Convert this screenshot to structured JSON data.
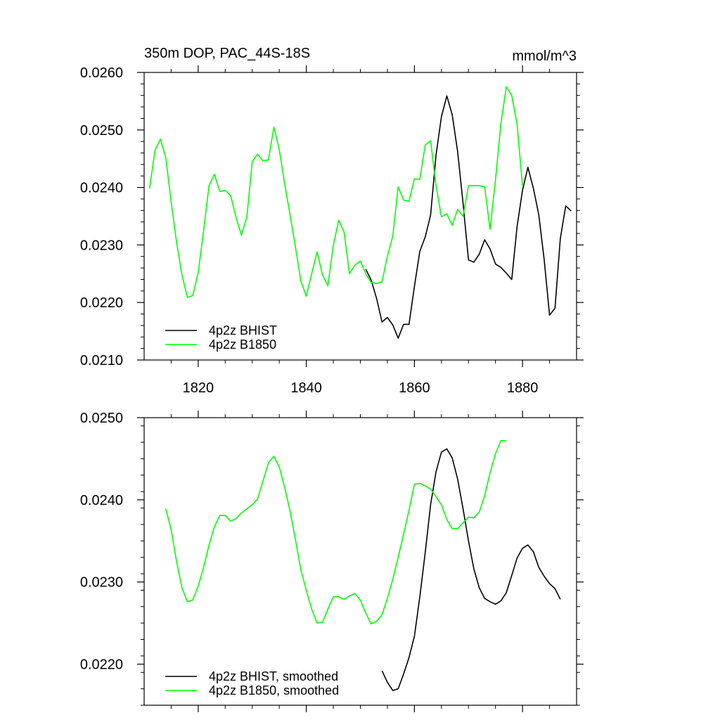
{
  "chart_data": [
    {
      "type": "line",
      "title": "350m DOP, PAC_44S-18S",
      "units": "mmol/m^3",
      "xlim": [
        1810,
        1890
      ],
      "ylim": [
        0.021,
        0.026
      ],
      "x_ticks": [
        1820,
        1840,
        1860,
        1880
      ],
      "x_tick_labels": [
        "1820",
        "1840",
        "1860",
        "1880"
      ],
      "y_ticks": [
        0.021,
        0.022,
        0.023,
        0.024,
        0.025,
        0.026
      ],
      "y_tick_labels": [
        "0.0210",
        "0.0220",
        "0.0230",
        "0.0240",
        "0.0250",
        "0.0260"
      ],
      "legend_position": "bottom-left",
      "series": [
        {
          "name": "4p2z BHIST",
          "color": "#000000",
          "x": [
            1851,
            1852,
            1853,
            1854,
            1855,
            1856,
            1857,
            1858,
            1859,
            1860,
            1861,
            1862,
            1863,
            1864,
            1865,
            1866,
            1867,
            1868,
            1869,
            1870,
            1871,
            1872,
            1873,
            1874,
            1875,
            1876,
            1877,
            1878,
            1879,
            1880,
            1881,
            1882,
            1883,
            1884,
            1885,
            1886,
            1887,
            1888,
            1889
          ],
          "y": [
            0.02258,
            0.02239,
            0.02207,
            0.02166,
            0.02174,
            0.02161,
            0.02138,
            0.02162,
            0.02162,
            0.02228,
            0.02289,
            0.02314,
            0.02352,
            0.02456,
            0.02523,
            0.02559,
            0.02526,
            0.02462,
            0.02372,
            0.02274,
            0.0227,
            0.02284,
            0.02309,
            0.02293,
            0.02267,
            0.02261,
            0.02251,
            0.0224,
            0.02332,
            0.02395,
            0.02435,
            0.02399,
            0.02353,
            0.02275,
            0.02178,
            0.0219,
            0.02311,
            0.02368,
            0.02359
          ]
        },
        {
          "name": "4p2z B1850",
          "color": "#00ff00",
          "x": [
            1811,
            1812,
            1813,
            1814,
            1815,
            1816,
            1817,
            1818,
            1819,
            1820,
            1821,
            1822,
            1823,
            1824,
            1825,
            1826,
            1827,
            1828,
            1829,
            1830,
            1831,
            1832,
            1833,
            1834,
            1835,
            1836,
            1837,
            1838,
            1839,
            1840,
            1841,
            1842,
            1843,
            1844,
            1845,
            1846,
            1847,
            1848,
            1849,
            1850,
            1851,
            1852,
            1853,
            1854,
            1855,
            1856,
            1857,
            1858,
            1859,
            1860,
            1861,
            1862,
            1863,
            1864,
            1865,
            1866,
            1867,
            1868,
            1869,
            1870,
            1871,
            1872,
            1873,
            1874,
            1875,
            1876,
            1877,
            1878,
            1879,
            1880
          ],
          "y": [
            0.02398,
            0.02464,
            0.02484,
            0.02452,
            0.02375,
            0.02305,
            0.02248,
            0.02209,
            0.02212,
            0.02252,
            0.02325,
            0.02403,
            0.02423,
            0.02393,
            0.02395,
            0.02386,
            0.02348,
            0.02317,
            0.02349,
            0.02445,
            0.02458,
            0.02446,
            0.02448,
            0.02505,
            0.02466,
            0.02406,
            0.02352,
            0.02296,
            0.02237,
            0.02211,
            0.0225,
            0.02288,
            0.02248,
            0.02229,
            0.023,
            0.02343,
            0.02322,
            0.0225,
            0.02265,
            0.02272,
            0.0225,
            0.02235,
            0.02233,
            0.02236,
            0.0228,
            0.02315,
            0.02401,
            0.02378,
            0.02376,
            0.02415,
            0.02414,
            0.02474,
            0.02481,
            0.02404,
            0.02349,
            0.02354,
            0.02334,
            0.02362,
            0.0235,
            0.02403,
            0.02403,
            0.02403,
            0.02401,
            0.02327,
            0.02413,
            0.02511,
            0.02575,
            0.0256,
            0.0251,
            0.02403
          ]
        }
      ]
    },
    {
      "type": "line",
      "title": "",
      "xlim": [
        1810,
        1890
      ],
      "ylim": [
        0.0215,
        0.025
      ],
      "x_ticks": [
        1820,
        1840,
        1860,
        1880
      ],
      "y_ticks": [
        0.022,
        0.023,
        0.024,
        0.025
      ],
      "y_tick_labels": [
        "0.0220",
        "0.0230",
        "0.0240",
        "0.0250"
      ],
      "legend_position": "bottom-left",
      "series": [
        {
          "name": "4p2z BHIST, smoothed",
          "color": "#000000",
          "x": [
            1854,
            1855,
            1856,
            1857,
            1858,
            1859,
            1860,
            1861,
            1862,
            1863,
            1864,
            1865,
            1866,
            1867,
            1868,
            1869,
            1870,
            1871,
            1872,
            1873,
            1874,
            1875,
            1876,
            1877,
            1878,
            1879,
            1880,
            1881,
            1882,
            1883,
            1884,
            1885,
            1886,
            1887
          ],
          "y": [
            0.02192,
            0.02178,
            0.02168,
            0.0217,
            0.02188,
            0.02208,
            0.02234,
            0.02282,
            0.02336,
            0.02394,
            0.02434,
            0.02458,
            0.02462,
            0.02451,
            0.02425,
            0.02389,
            0.0235,
            0.02316,
            0.02293,
            0.0228,
            0.02276,
            0.02273,
            0.02277,
            0.02287,
            0.02308,
            0.02329,
            0.02341,
            0.02345,
            0.02337,
            0.02318,
            0.02307,
            0.02298,
            0.02292,
            0.02279
          ]
        },
        {
          "name": "4p2z B1850, smoothed",
          "color": "#00ff00",
          "x": [
            1814,
            1815,
            1816,
            1817,
            1818,
            1819,
            1820,
            1821,
            1822,
            1823,
            1824,
            1825,
            1826,
            1827,
            1828,
            1829,
            1830,
            1831,
            1832,
            1833,
            1834,
            1835,
            1836,
            1837,
            1838,
            1839,
            1840,
            1841,
            1842,
            1843,
            1844,
            1845,
            1846,
            1847,
            1848,
            1849,
            1850,
            1851,
            1852,
            1853,
            1854,
            1855,
            1856,
            1857,
            1858,
            1859,
            1860,
            1861,
            1862,
            1863,
            1864,
            1865,
            1866,
            1867,
            1868,
            1869,
            1870,
            1871,
            1872,
            1873,
            1874,
            1875,
            1876,
            1877
          ],
          "y": [
            0.02389,
            0.02364,
            0.02325,
            0.02293,
            0.02276,
            0.02278,
            0.02295,
            0.02318,
            0.02345,
            0.02367,
            0.02381,
            0.02381,
            0.02374,
            0.02377,
            0.02384,
            0.02389,
            0.02394,
            0.02401,
            0.02423,
            0.02445,
            0.02453,
            0.0244,
            0.02415,
            0.02386,
            0.02351,
            0.02315,
            0.0229,
            0.02267,
            0.0225,
            0.02251,
            0.02267,
            0.02282,
            0.02282,
            0.02279,
            0.02283,
            0.02286,
            0.02278,
            0.02262,
            0.02249,
            0.02252,
            0.0226,
            0.0228,
            0.02303,
            0.0233,
            0.02358,
            0.02387,
            0.02419,
            0.0242,
            0.02417,
            0.02413,
            0.02404,
            0.02394,
            0.02376,
            0.02365,
            0.02365,
            0.02372,
            0.02379,
            0.02378,
            0.02385,
            0.02405,
            0.02433,
            0.02456,
            0.02472,
            0.02472
          ]
        }
      ]
    }
  ]
}
